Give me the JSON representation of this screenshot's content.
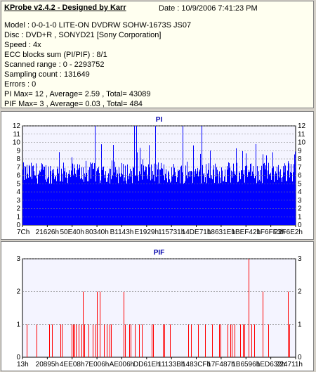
{
  "header": {
    "title": "KProbe v2.4.2 - Designed by Karr",
    "date": "Date : 10/9/2006 7:41:23 PM"
  },
  "info_lines": [
    "Model : 0-0-1-0 LITE-ON DVDRW SOHW-1673S JS07",
    "Disc : DVD+R , SONYD21 [Sony Corporation]",
    "Speed : 4x",
    "ECC blocks sum (PI/PIF) : 8/1",
    "Scanned range : 0 - 2293752",
    "Sampling count : 131649",
    "Errors : 0",
    "PI Max= 12 , Average= 2.59 , Total= 43089",
    "PIF Max= 3 , Average= 0.03 , Total= 484"
  ],
  "colors": {
    "pi_fill": "#0000ff",
    "pif_bar": "#ff0000",
    "grid": "#808080",
    "title": "#0000aa"
  },
  "chart_data": [
    {
      "type": "bar",
      "title": "PI",
      "ylim": [
        0,
        12
      ],
      "y_ticks": [
        0,
        1,
        2,
        3,
        4,
        5,
        6,
        7,
        8,
        9,
        10,
        11,
        12
      ],
      "x_tick_labels": [
        "7Ch",
        "21626h",
        "50E40h",
        "80340h",
        "B1143h",
        "E1929h",
        "115731h",
        "14DE71h",
        "18631Eh",
        "1BEF42h",
        "1F6FF3h",
        "22F6E2h"
      ],
      "baseline": 5,
      "typical_peak": 7,
      "max": 12,
      "average": 2.59,
      "grid": true
    },
    {
      "type": "bar",
      "title": "PIF",
      "ylim": [
        0,
        3
      ],
      "y_ticks": [
        0,
        1,
        2,
        3
      ],
      "x_tick_labels": [
        "13h",
        "20895h",
        "4EE08h",
        "7E006h",
        "AE006h",
        "DD61Eh",
        "11133Bh",
        "1483CFh",
        "17F487h",
        "1B6596h",
        "1ED632h",
        "224711h"
      ],
      "max": 3,
      "average": 0.03,
      "grid": true
    }
  ]
}
